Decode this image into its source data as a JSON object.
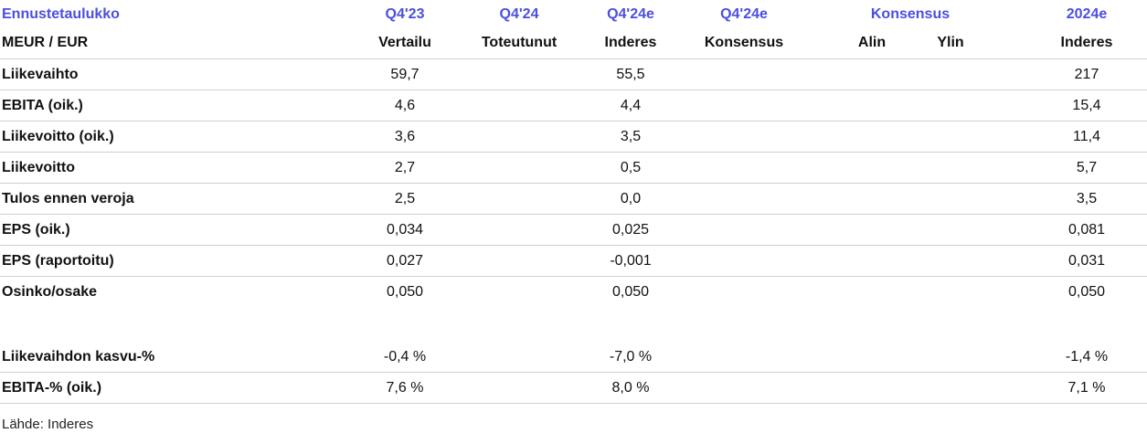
{
  "header": {
    "title": "Ennustetaulukko",
    "units": "MEUR / EUR",
    "columns": [
      {
        "top": "Q4'23",
        "bottom": "Vertailu"
      },
      {
        "top": "Q4'24",
        "bottom": "Toteutunut"
      },
      {
        "top": "Q4'24e",
        "bottom": "Inderes"
      },
      {
        "top": "Q4'24e",
        "bottom": "Konsensus"
      },
      {
        "top": "Konsensus",
        "bottom_low": "Alin",
        "bottom_high": "Ylin"
      },
      {
        "top": "2024e",
        "bottom": "Inderes"
      }
    ]
  },
  "rows": [
    {
      "label": "Liikevaihto",
      "q4_23": "59,7",
      "q4_24": "",
      "q4_24e_inderes": "55,5",
      "q4_24e_consensus": "",
      "low": "",
      "high": "",
      "y2024e": "217"
    },
    {
      "label": "EBITA (oik.)",
      "q4_23": "4,6",
      "q4_24": "",
      "q4_24e_inderes": "4,4",
      "q4_24e_consensus": "",
      "low": "",
      "high": "",
      "y2024e": "15,4"
    },
    {
      "label": "Liikevoitto (oik.)",
      "q4_23": "3,6",
      "q4_24": "",
      "q4_24e_inderes": "3,5",
      "q4_24e_consensus": "",
      "low": "",
      "high": "",
      "y2024e": "11,4"
    },
    {
      "label": "Liikevoitto",
      "q4_23": "2,7",
      "q4_24": "",
      "q4_24e_inderes": "0,5",
      "q4_24e_consensus": "",
      "low": "",
      "high": "",
      "y2024e": "5,7"
    },
    {
      "label": "Tulos ennen veroja",
      "q4_23": "2,5",
      "q4_24": "",
      "q4_24e_inderes": "0,0",
      "q4_24e_consensus": "",
      "low": "",
      "high": "",
      "y2024e": "3,5"
    },
    {
      "label": "EPS (oik.)",
      "q4_23": "0,034",
      "q4_24": "",
      "q4_24e_inderes": "0,025",
      "q4_24e_consensus": "",
      "low": "",
      "high": "",
      "y2024e": "0,081"
    },
    {
      "label": "EPS (raportoitu)",
      "q4_23": "0,027",
      "q4_24": "",
      "q4_24e_inderes": "-0,001",
      "q4_24e_consensus": "",
      "low": "",
      "high": "",
      "y2024e": "0,031"
    },
    {
      "label": "Osinko/osake",
      "q4_23": "0,050",
      "q4_24": "",
      "q4_24e_inderes": "0,050",
      "q4_24e_consensus": "",
      "low": "",
      "high": "",
      "y2024e": "0,050"
    }
  ],
  "growth_rows": [
    {
      "label": "Liikevaihdon kasvu-%",
      "q4_23": "-0,4 %",
      "q4_24": "",
      "q4_24e_inderes": "-7,0 %",
      "q4_24e_consensus": "",
      "low": "",
      "high": "",
      "y2024e": "-1,4 %"
    },
    {
      "label": "EBITA-% (oik.)",
      "q4_23": "7,6 %",
      "q4_24": "",
      "q4_24e_inderes": "8,0 %",
      "q4_24e_consensus": "",
      "low": "",
      "high": "",
      "y2024e": "7,1 %"
    }
  ],
  "source": "Lähde: Inderes",
  "colors": {
    "header_accent": "#4b4fe0",
    "rule": "#cfcfcf",
    "text": "#111111"
  }
}
